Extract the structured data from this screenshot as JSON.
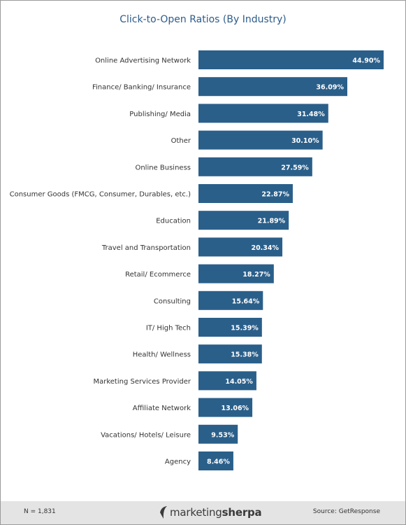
{
  "chart_data": {
    "type": "bar",
    "orientation": "horizontal",
    "title": "Click-to-Open Ratios (By Industry)",
    "categories": [
      "Online Advertising Network",
      "Finance/ Banking/ Insurance",
      "Publishing/ Media",
      "Other",
      "Online Business",
      "Consumer Goods (FMCG, Consumer, Durables, etc.)",
      "Education",
      "Travel and Transportation",
      "Retail/ Ecommerce",
      "Consulting",
      "IT/ High Tech",
      "Health/ Wellness",
      "Marketing Services Provider",
      "Affiliate Network",
      "Vacations/ Hotels/ Leisure",
      "Agency"
    ],
    "values": [
      44.9,
      36.09,
      31.48,
      30.1,
      27.59,
      22.87,
      21.89,
      20.34,
      18.27,
      15.64,
      15.39,
      15.38,
      14.05,
      13.06,
      9.53,
      8.46
    ],
    "value_labels": [
      "44.90%",
      "36.09%",
      "31.48%",
      "30.10%",
      "27.59%",
      "22.87%",
      "21.89%",
      "20.34%",
      "18.27%",
      "15.64%",
      "15.39%",
      "15.38%",
      "14.05%",
      "13.06%",
      "9.53%",
      "8.46%"
    ],
    "xlim": [
      0,
      44.9
    ],
    "unit": "%",
    "grid": false,
    "bar_color": "#2a5f8a",
    "value_label_color": "#ffffff"
  },
  "footer": {
    "sample_size": "N = 1,831",
    "brand_light": "marketing",
    "brand_bold": "sherpa",
    "source": "Source: GetResponse"
  },
  "colors": {
    "title": "#2d5c8a",
    "bar": "#2a5f8a",
    "footer_bg": "#e4e4e4",
    "border": "#9a9a9a"
  }
}
